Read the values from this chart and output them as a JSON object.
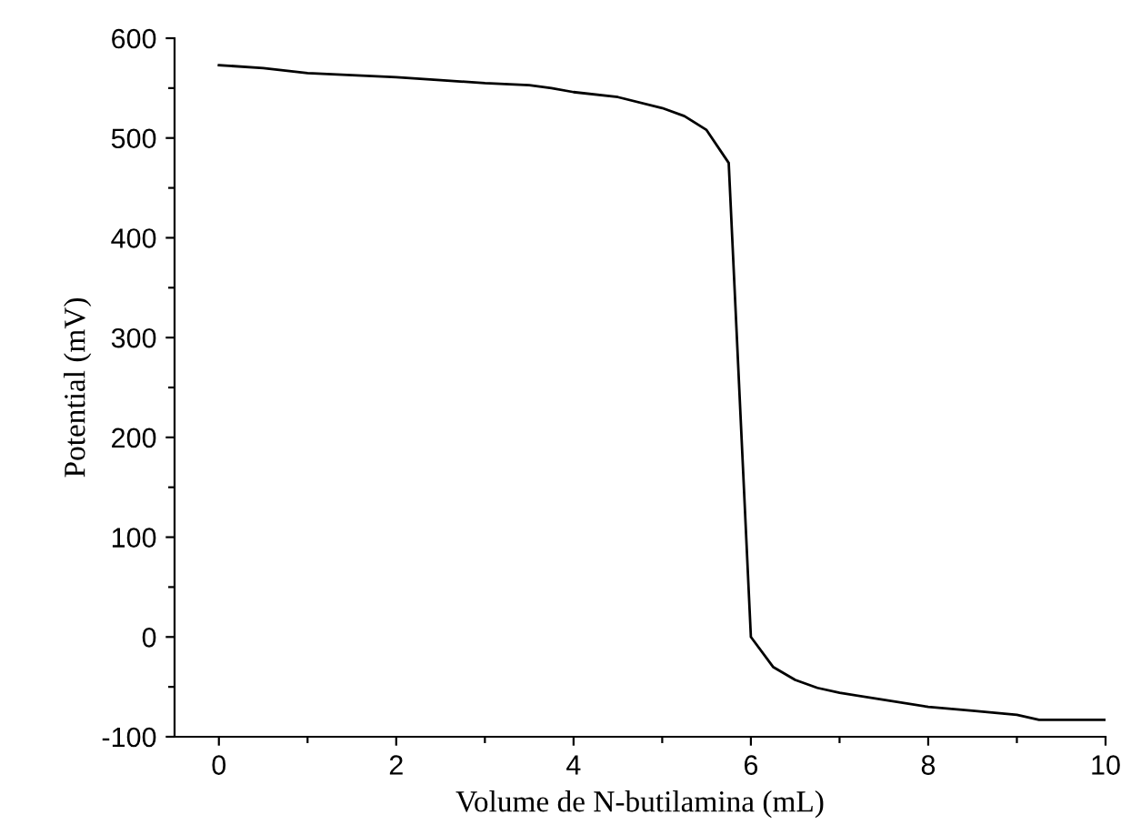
{
  "chart_data": {
    "type": "line",
    "xlabel": "Volume de N-butilamina (mL)",
    "ylabel": "Potential (mV)",
    "x": [
      0,
      0.5,
      1,
      1.5,
      2,
      2.5,
      3,
      3.5,
      3.75,
      4,
      4.5,
      5,
      5.25,
      5.5,
      5.75,
      6,
      6.25,
      6.5,
      6.75,
      7,
      7.5,
      8,
      8.5,
      9,
      9.25,
      10
    ],
    "series": [
      {
        "color": "#000000",
        "values": [
          573,
          570,
          565,
          563,
          561,
          558,
          555,
          553,
          550,
          546,
          541,
          530,
          522,
          508,
          475,
          0,
          -30,
          -43,
          -51,
          -56,
          -63,
          -70,
          -74,
          -78,
          -83,
          -83
        ]
      }
    ],
    "xlim": [
      -0.5,
      10
    ],
    "ylim": [
      -100,
      600
    ],
    "xticks": [
      0,
      {
        "value": 1,
        "label": null
      },
      2,
      {
        "value": 3,
        "label": null
      },
      4,
      {
        "value": 5,
        "label": null
      },
      6,
      {
        "value": 7,
        "label": null
      },
      8,
      {
        "value": 9,
        "label": null
      },
      10
    ],
    "yticks": [
      -100,
      {
        "value": -50,
        "label": null
      },
      0,
      {
        "value": 50,
        "label": null
      },
      100,
      {
        "value": 150,
        "label": null
      },
      200,
      {
        "value": 250,
        "label": null
      },
      300,
      {
        "value": 350,
        "label": null
      },
      400,
      {
        "value": 450,
        "label": null
      },
      500,
      {
        "value": 550,
        "label": null
      },
      600
    ],
    "grid": false,
    "legend": false,
    "marker": "none",
    "line_style": "solid"
  }
}
